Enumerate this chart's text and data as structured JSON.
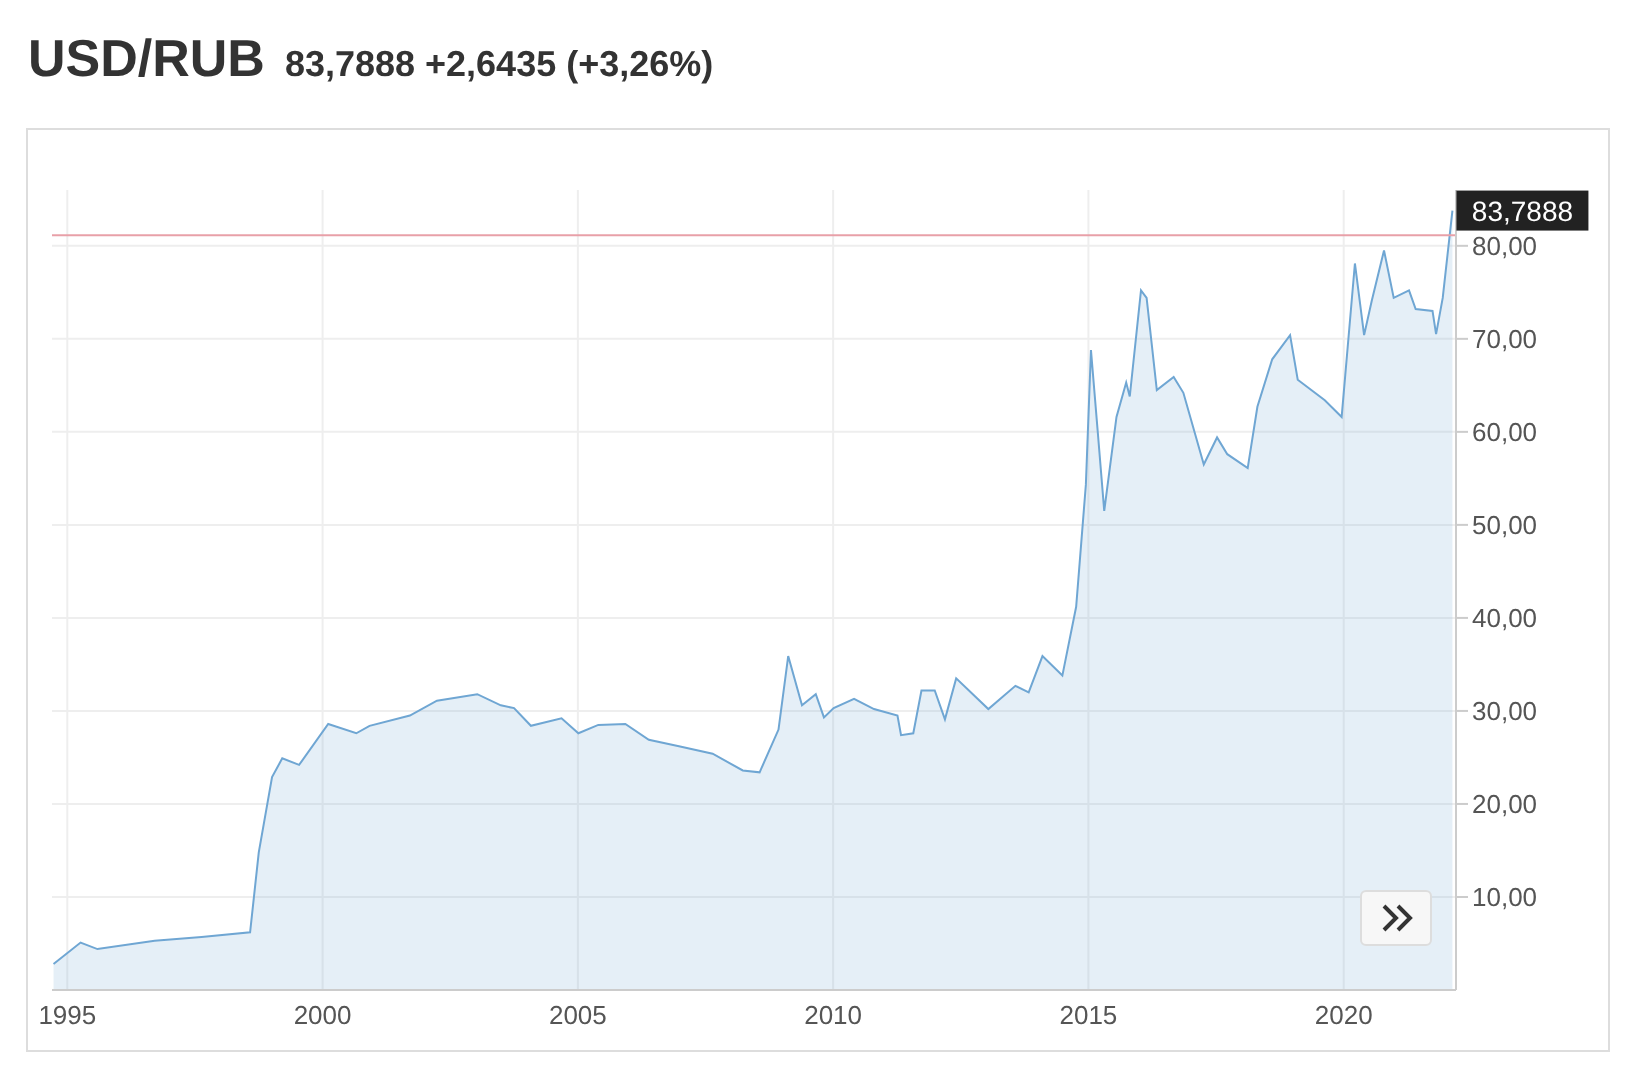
{
  "chart_data": {
    "type": "area",
    "title": "USD/RUB",
    "subtitle": "83,7888 +2,6435 (+3,26%)",
    "x": [
      1994.73,
      1995.26,
      1995.59,
      1996.71,
      1997.63,
      1998.58,
      1998.75,
      1999.01,
      1999.21,
      1999.54,
      2000.11,
      2000.66,
      2000.92,
      2001.71,
      2002.24,
      2003.03,
      2003.49,
      2003.75,
      2004.08,
      2004.68,
      2005.01,
      2005.4,
      2005.93,
      2006.39,
      2006.98,
      2007.64,
      2008.23,
      2008.56,
      2008.93,
      2009.12,
      2009.39,
      2009.66,
      2009.82,
      2010.01,
      2010.41,
      2010.8,
      2011.26,
      2011.33,
      2011.57,
      2011.73,
      2011.99,
      2012.19,
      2012.41,
      2013.04,
      2013.57,
      2013.83,
      2014.1,
      2014.49,
      2014.76,
      2014.95,
      2015.05,
      2015.18,
      2015.31,
      2015.55,
      2015.74,
      2015.81,
      2016.03,
      2016.14,
      2016.34,
      2016.67,
      2016.86,
      2017.26,
      2017.52,
      2017.72,
      2018.12,
      2018.31,
      2018.6,
      2018.95,
      2019.1,
      2019.63,
      2019.96,
      2020.22,
      2020.4,
      2020.55,
      2020.79,
      2020.98,
      2021.28,
      2021.41,
      2021.74,
      2021.81,
      2021.94,
      2022.13
    ],
    "series": [
      {
        "color": "#6fa6d3",
        "values": [
          2.8,
          5.1,
          4.4,
          5.3,
          5.7,
          6.2,
          14.8,
          22.9,
          24.9,
          24.2,
          28.6,
          27.6,
          28.4,
          29.5,
          31.1,
          31.8,
          30.6,
          30.3,
          28.4,
          29.2,
          27.6,
          28.5,
          28.6,
          26.9,
          26.2,
          25.4,
          23.6,
          23.4,
          28.0,
          35.9,
          30.6,
          31.8,
          29.3,
          30.3,
          31.3,
          30.2,
          29.5,
          27.4,
          27.6,
          32.2,
          32.2,
          29.1,
          33.5,
          30.2,
          32.7,
          32.0,
          35.9,
          33.8,
          41.2,
          54.3,
          68.8,
          60.2,
          51.5,
          61.6,
          65.3,
          63.8,
          75.2,
          74.4,
          64.5,
          65.9,
          64.2,
          56.5,
          59.4,
          57.6,
          56.1,
          62.7,
          67.8,
          70.4,
          65.6,
          63.4,
          61.6,
          78.1,
          70.4,
          74.1,
          79.5,
          74.4,
          75.2,
          73.2,
          73.0,
          70.5,
          74.4,
          83.7888
        ]
      }
    ],
    "xlim": [
      1994.7,
      2022.2
    ],
    "xticks": [
      1995,
      2000,
      2005,
      2010,
      2015,
      2020
    ],
    "ylim": [
      0,
      86
    ],
    "yticks": [
      {
        "value": 10,
        "label": "10,00"
      },
      {
        "value": 20,
        "label": "20,00"
      },
      {
        "value": 30,
        "label": "30,00"
      },
      {
        "value": 40,
        "label": "40,00"
      },
      {
        "value": 50,
        "label": "50,00"
      },
      {
        "value": 60,
        "label": "60,00"
      },
      {
        "value": 70,
        "label": "70,00"
      },
      {
        "value": 80,
        "label": "80,00"
      }
    ],
    "grid": true,
    "ref_lines": [
      {
        "axis": "y",
        "value": 81.1453,
        "color": "#e8a0a8"
      }
    ],
    "annotations": [
      {
        "text": "83,7888",
        "x": 2022.13,
        "y": 83.7888
      }
    ]
  }
}
